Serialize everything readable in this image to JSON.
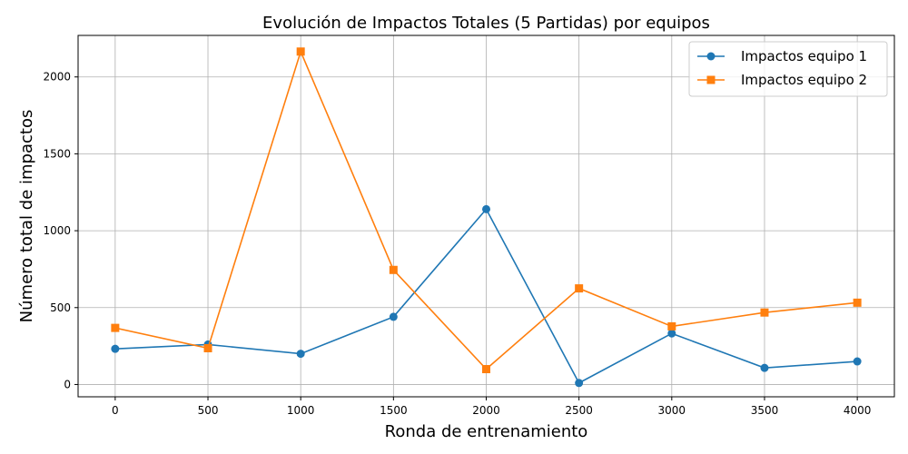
{
  "chart_data": {
    "type": "line",
    "title": "Evolución de Impactos Totales (5 Partidas) por equipos",
    "xlabel": "Ronda de entrenamiento",
    "ylabel": "Número total de impactos",
    "x": [
      0,
      500,
      1000,
      1500,
      2000,
      2500,
      3000,
      3500,
      4000
    ],
    "xlim": [
      -200,
      4200
    ],
    "ylim": [
      -80,
      2270
    ],
    "xticks": [
      0,
      500,
      1000,
      1500,
      2000,
      2500,
      3000,
      3500,
      4000
    ],
    "yticks": [
      0,
      500,
      1000,
      1500,
      2000
    ],
    "grid": true,
    "legend_position": "top-right",
    "series": [
      {
        "name": "Impactos equipo 1",
        "color": "#1f77b4",
        "marker": "circle",
        "values": [
          232,
          260,
          200,
          440,
          1140,
          10,
          332,
          108,
          150
        ]
      },
      {
        "name": "Impactos equipo 2",
        "color": "#ff7f0e",
        "marker": "square",
        "values": [
          368,
          236,
          2165,
          745,
          100,
          625,
          378,
          468,
          532
        ]
      }
    ]
  }
}
